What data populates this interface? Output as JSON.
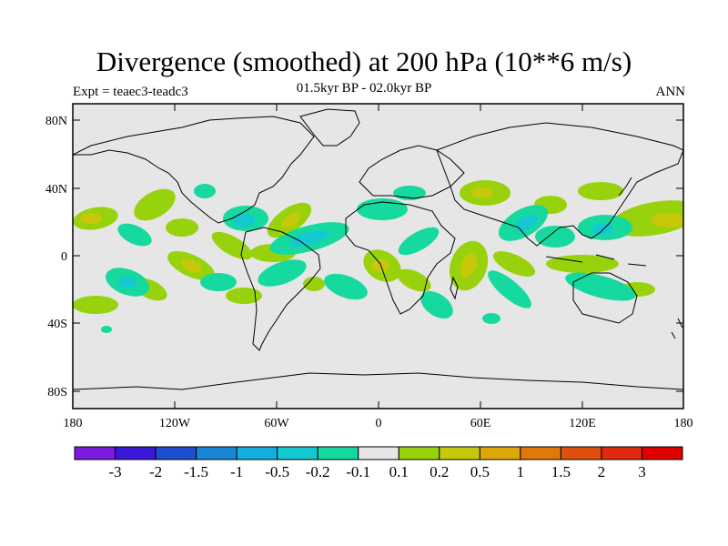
{
  "header": {
    "title": "Divergence (smoothed) at 200 hPa (10**6 m/s)",
    "subtitle": "01.5kyr BP - 02.0kyr BP",
    "left_label": "Expt = teaec3-teadc3",
    "right_label": "ANN"
  },
  "axes": {
    "lat_ticks": [
      "80N",
      "40N",
      "0",
      "40S",
      "80S"
    ],
    "lon_ticks": [
      "180",
      "120W",
      "60W",
      "0",
      "60E",
      "120E",
      "180"
    ]
  },
  "colorbar": {
    "labels": [
      "-3",
      "-2",
      "-1.5",
      "-1",
      "-0.5",
      "-0.2",
      "-0.1",
      "0.1",
      "0.2",
      "0.5",
      "1",
      "1.5",
      "2",
      "3"
    ],
    "colors": [
      "#7b1be0",
      "#3a18d6",
      "#1f4fd1",
      "#1a87d6",
      "#12aee0",
      "#14c8d2",
      "#16d9a0",
      "#e6e6e6",
      "#98d20c",
      "#c7c80a",
      "#dfa60a",
      "#e1780a",
      "#df500e",
      "#df2a10",
      "#e00000"
    ]
  },
  "map": {
    "background_color": "#e6e6e6",
    "land_outline_color": "#000000"
  }
}
